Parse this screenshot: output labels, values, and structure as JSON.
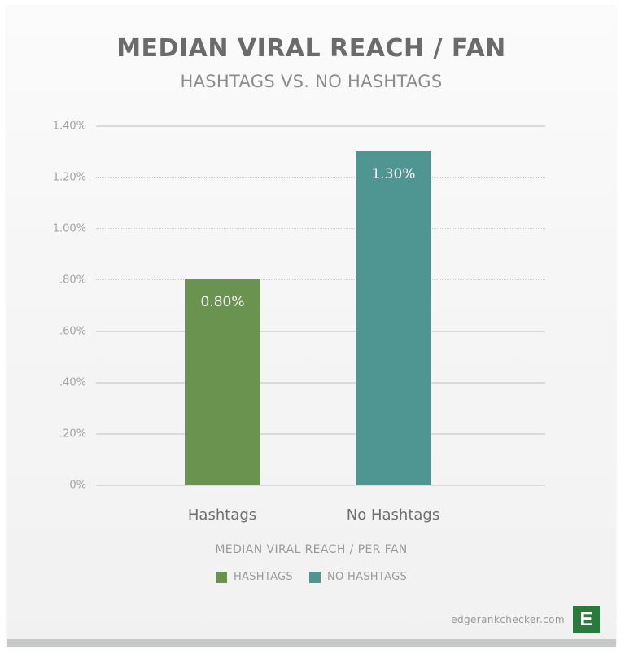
{
  "header": {
    "title": "MEDIAN VIRAL REACH / FAN",
    "subtitle": "HASHTAGS VS. NO HASHTAGS"
  },
  "axis": {
    "yticks": [
      "0%",
      ".20%",
      ".40%",
      ".60%",
      ".80%",
      "1.00%",
      "1.20%",
      "1.40%"
    ],
    "xticks": [
      "Hashtags",
      "No Hashtags"
    ],
    "xlabel": "MEDIAN VIRAL REACH / PER FAN"
  },
  "bars": [
    {
      "label": "0.80%",
      "value": 0.8,
      "color": "#6b9350"
    },
    {
      "label": "1.30%",
      "value": 1.3,
      "color": "#4f9692"
    }
  ],
  "legend": [
    {
      "label": "HASHTAGS",
      "color": "#6b9350"
    },
    {
      "label": "NO HASHTAGS",
      "color": "#4f9692"
    }
  ],
  "footer": {
    "brand_text": "edgerankchecker.com",
    "logo_letter": "E",
    "logo_color": "#2a7a3d"
  },
  "chart_data": {
    "type": "bar",
    "title": "MEDIAN VIRAL REACH / FAN",
    "subtitle": "HASHTAGS VS. NO HASHTAGS",
    "categories": [
      "Hashtags",
      "No Hashtags"
    ],
    "values": [
      0.8,
      1.3
    ],
    "value_labels": [
      "0.80%",
      "1.30%"
    ],
    "colors": [
      "#6b9350",
      "#4f9692"
    ],
    "xlabel": "MEDIAN VIRAL REACH / PER FAN",
    "ylabel": "",
    "ylim": [
      0,
      1.4
    ],
    "yticks": [
      0,
      0.2,
      0.4,
      0.6,
      0.8,
      1.0,
      1.2,
      1.4
    ],
    "ytick_labels": [
      "0%",
      ".20%",
      ".40%",
      ".60%",
      ".80%",
      "1.00%",
      "1.20%",
      "1.40%"
    ],
    "unit": "%",
    "grid": true,
    "legend": [
      "HASHTAGS",
      "NO HASHTAGS"
    ],
    "legend_position": "bottom",
    "source": "edgerankchecker.com"
  }
}
